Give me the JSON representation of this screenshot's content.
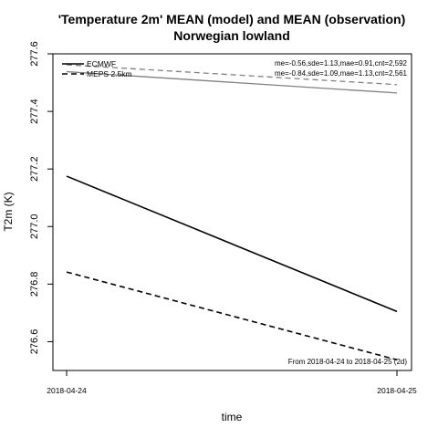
{
  "chart_data": {
    "type": "line",
    "title": [
      "'Temperature 2m' MEAN (model) and MEAN (observation)",
      "Norwegian lowland"
    ],
    "xlabel": "time",
    "ylabel": "T2m (K)",
    "x": [
      "2018-04-24",
      "2018-04-25"
    ],
    "ylim": [
      276.5,
      277.6
    ],
    "yticks": [
      "276.6",
      "276.8",
      "277.0",
      "277.2",
      "277.4",
      "277.6"
    ],
    "grid": false,
    "legend_position": "top-left",
    "legend": [
      {
        "label": "ECMWF",
        "dash": "solid"
      },
      {
        "label": "MEPS 2.5km",
        "dash": "dashed"
      }
    ],
    "series": [
      {
        "model": "ECMWF",
        "kind": "model",
        "color": "#000000",
        "dash": "solid",
        "values": [
          277.175,
          276.705
        ]
      },
      {
        "model": "MEPS 2.5km",
        "kind": "model",
        "color": "#000000",
        "dash": "dashed",
        "values": [
          276.842,
          276.537
        ]
      },
      {
        "model": "ECMWF",
        "kind": "observation",
        "color": "#808080",
        "dash": "solid",
        "values": [
          277.538,
          277.464
        ]
      },
      {
        "model": "MEPS 2.5km",
        "kind": "observation",
        "color": "#808080",
        "dash": "dashed",
        "values": [
          277.562,
          277.493
        ]
      }
    ],
    "stats": [
      "me=-0.56,sde=1.13,mae=0.91,cnt=2,592",
      "me=-0.84,sde=1.09,mae=1.13,cnt=2,561"
    ],
    "period_note": "From 2018-04-24 to 2018-04-25 (2d)"
  }
}
